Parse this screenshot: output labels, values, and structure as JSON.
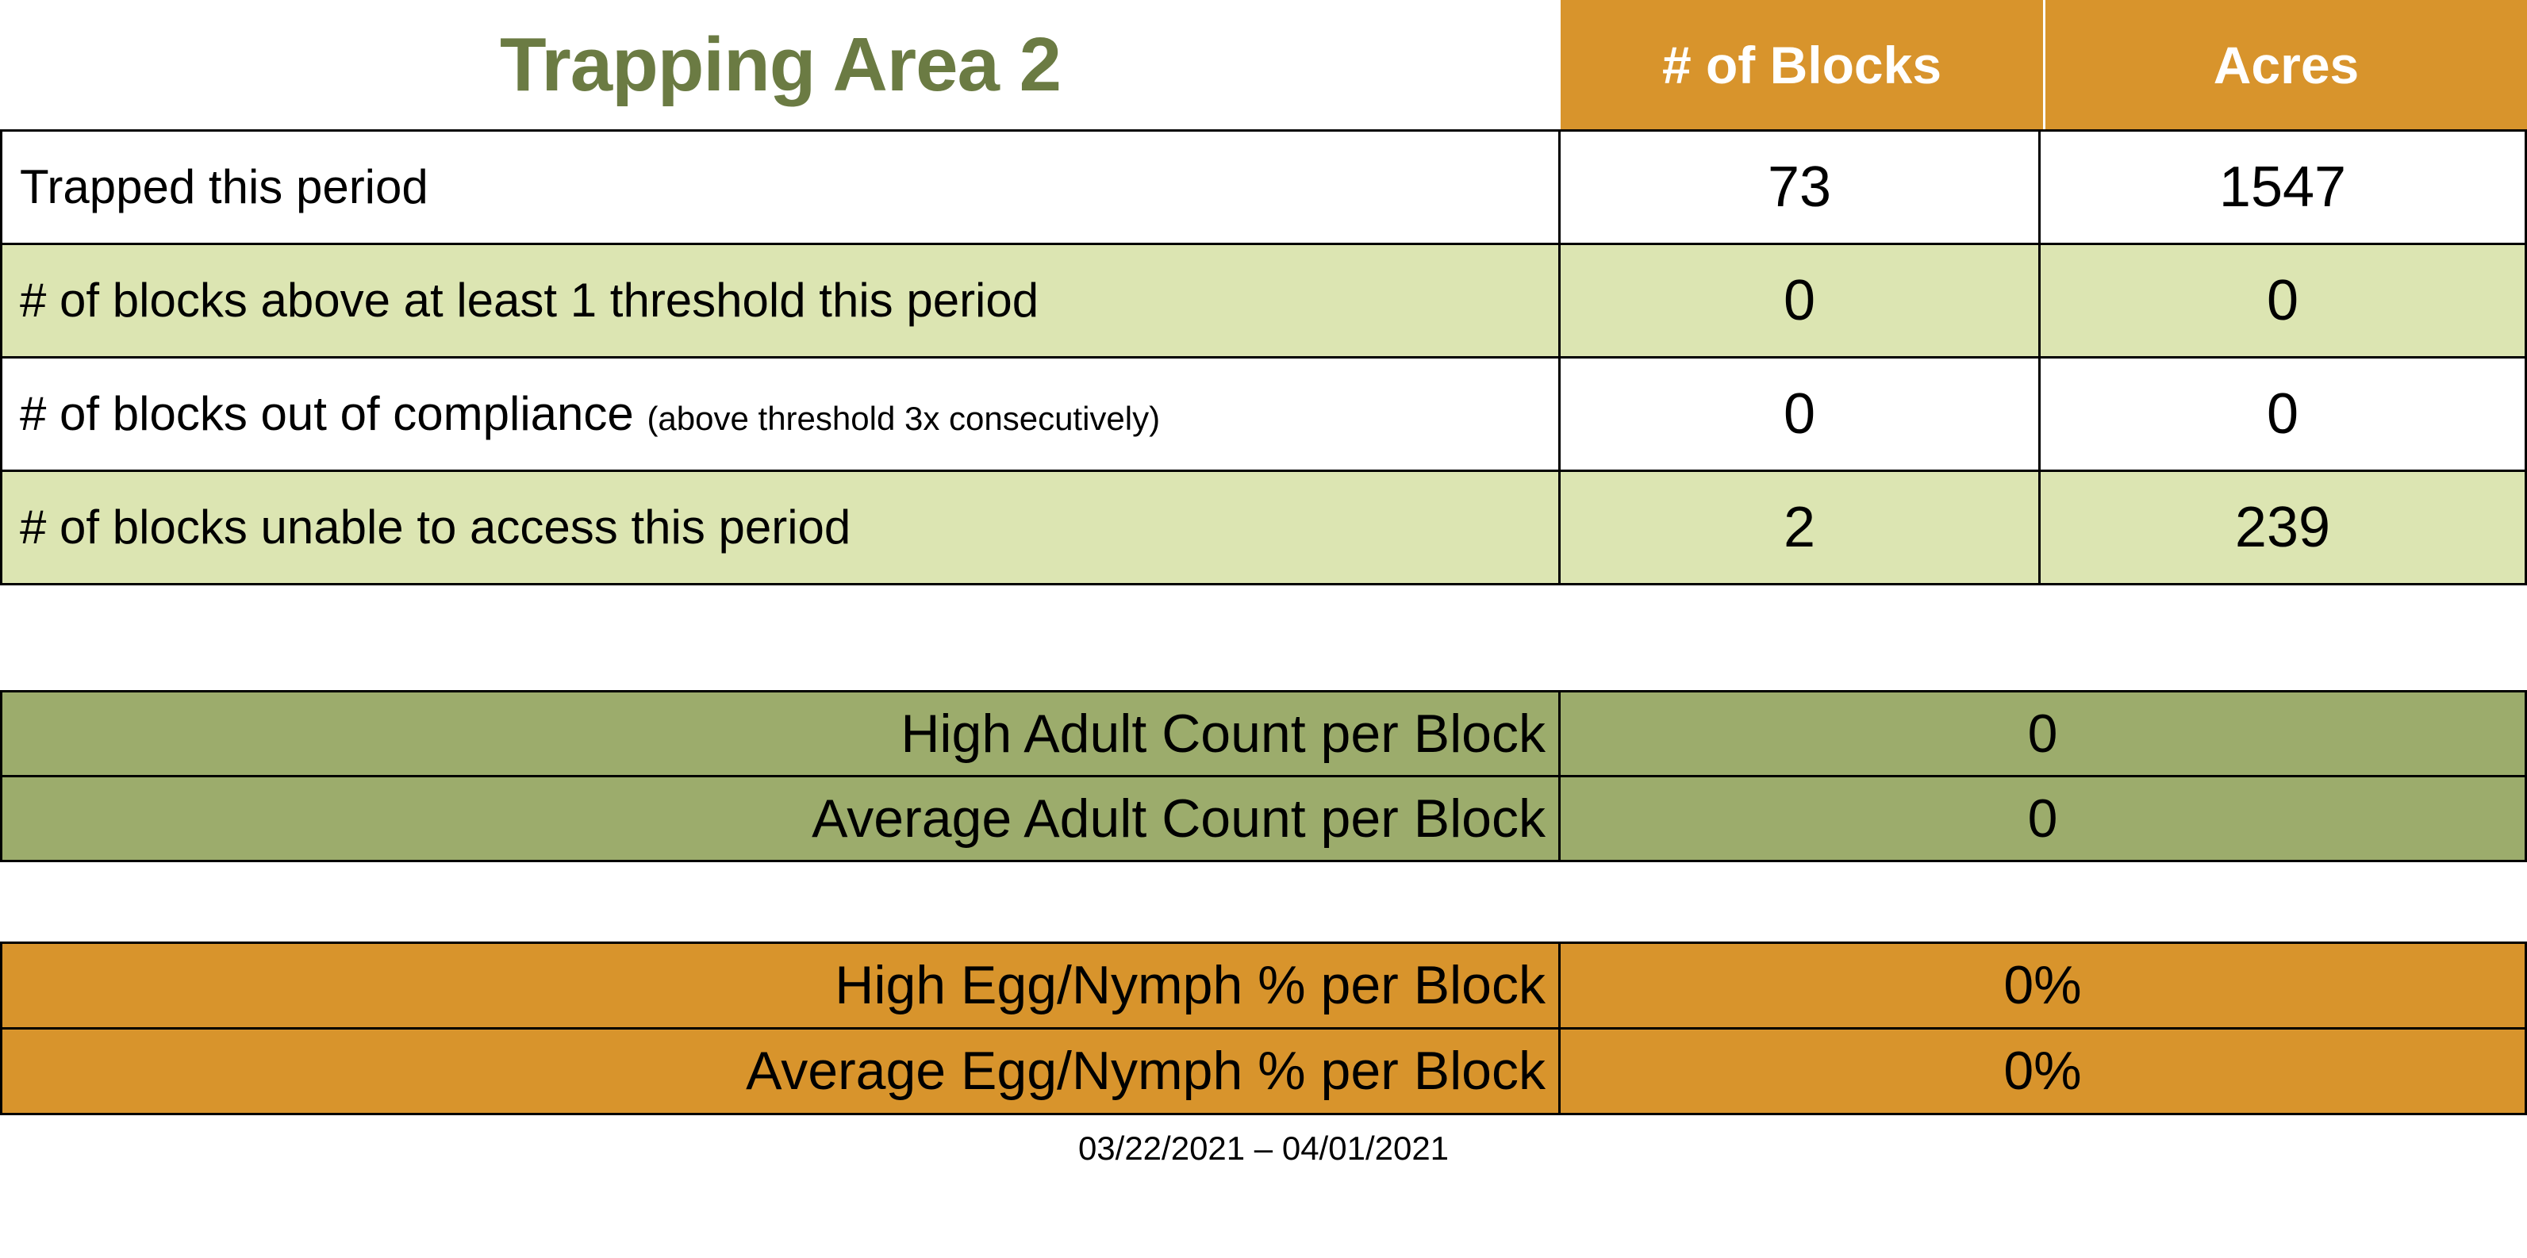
{
  "page": {
    "title": "Trapping Area 2",
    "date_range": "03/22/2021 – 04/01/2021"
  },
  "colors": {
    "header_orange": "#D8942C",
    "row_light_green": "#DCE5B2",
    "adult_olive": "#9CAC6C",
    "title_green": "#6B7B43",
    "header_text": "#FFFFFF",
    "grid_border": "#000000"
  },
  "summary_table": {
    "columns": [
      "# of Blocks",
      "Acres"
    ],
    "rows": [
      {
        "label": "Trapped this period",
        "note": "",
        "blocks": "73",
        "acres": "1547"
      },
      {
        "label": "# of blocks above at least 1 threshold this period",
        "note": "",
        "blocks": "0",
        "acres": "0"
      },
      {
        "label": "# of blocks out of compliance",
        "note": "(above threshold 3x consecutively)",
        "blocks": "0",
        "acres": "0"
      },
      {
        "label": "# of blocks unable to access this period",
        "note": "",
        "blocks": "2",
        "acres": "239"
      }
    ]
  },
  "adult_count_table": {
    "rows": [
      {
        "label": "High Adult Count per Block",
        "value": "0"
      },
      {
        "label": "Average Adult Count per Block",
        "value": "0"
      }
    ]
  },
  "egg_nymph_table": {
    "rows": [
      {
        "label": "High Egg/Nymph % per Block",
        "value": "0%"
      },
      {
        "label": "Average Egg/Nymph % per Block",
        "value": "0%"
      }
    ]
  }
}
